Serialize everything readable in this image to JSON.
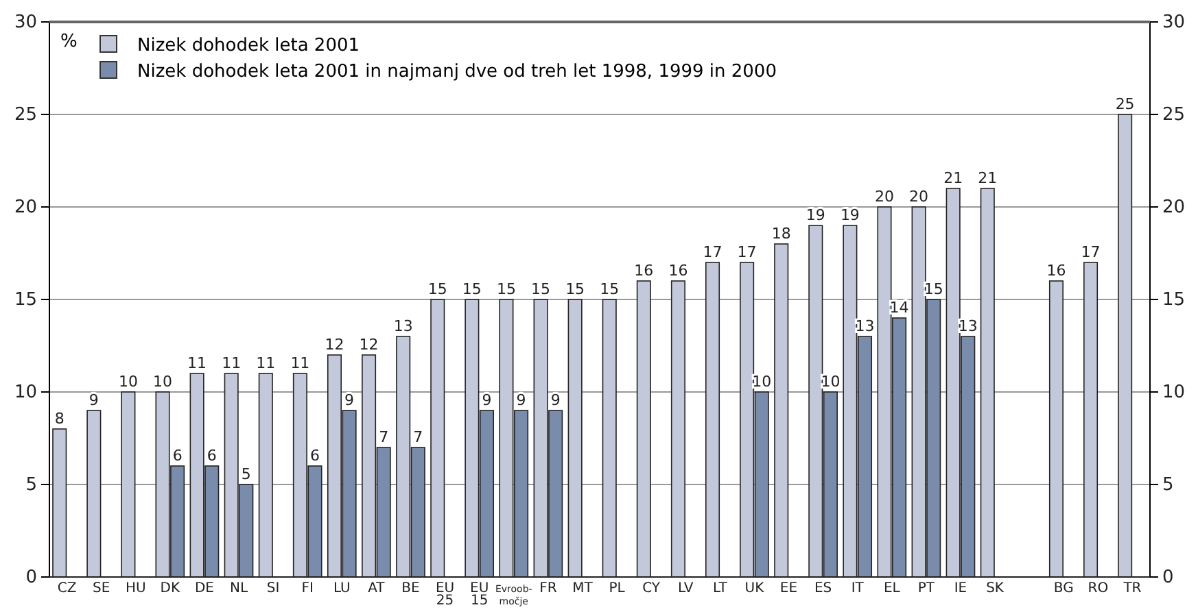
{
  "chart_data": {
    "type": "bar",
    "ylabel": "%",
    "categories": [
      "CZ",
      "SE",
      "HU",
      "DK",
      "DE",
      "NL",
      "SI",
      "FI",
      "LU",
      "AT",
      "BE",
      "EU 25",
      "EU 15",
      "Evroob-močje",
      "FR",
      "MT",
      "PL",
      "CY",
      "LV",
      "LT",
      "UK",
      "EE",
      "ES",
      "IT",
      "EL",
      "PT",
      "IE",
      "SK",
      null,
      "BG",
      "RO",
      "TR"
    ],
    "series": [
      {
        "name": "Nizek dohodek leta 2001",
        "color": "#c3c9da",
        "values": [
          8,
          9,
          10,
          10,
          11,
          11,
          11,
          11,
          12,
          12,
          13,
          15,
          15,
          15,
          15,
          15,
          15,
          16,
          16,
          17,
          17,
          18,
          19,
          19,
          20,
          20,
          21,
          21,
          null,
          16,
          17,
          25
        ]
      },
      {
        "name": "Nizek dohodek leta 2001 in najmanj dve od treh let 1998, 1999 in 2000",
        "color": "#7a8cac",
        "values": [
          null,
          null,
          null,
          6,
          6,
          5,
          null,
          6,
          9,
          7,
          7,
          null,
          9,
          9,
          9,
          null,
          null,
          null,
          null,
          null,
          10,
          null,
          10,
          13,
          14,
          15,
          13,
          null,
          null,
          null,
          null,
          null
        ]
      }
    ],
    "ylim": [
      0,
      30
    ],
    "yticks": [
      0,
      5,
      10,
      15,
      20,
      25,
      30
    ],
    "y2lim": [
      0,
      30
    ],
    "y2ticks": [
      0,
      5,
      10,
      15,
      20,
      25,
      30
    ],
    "grid": "y",
    "legend": "top left",
    "data_labels": true
  }
}
